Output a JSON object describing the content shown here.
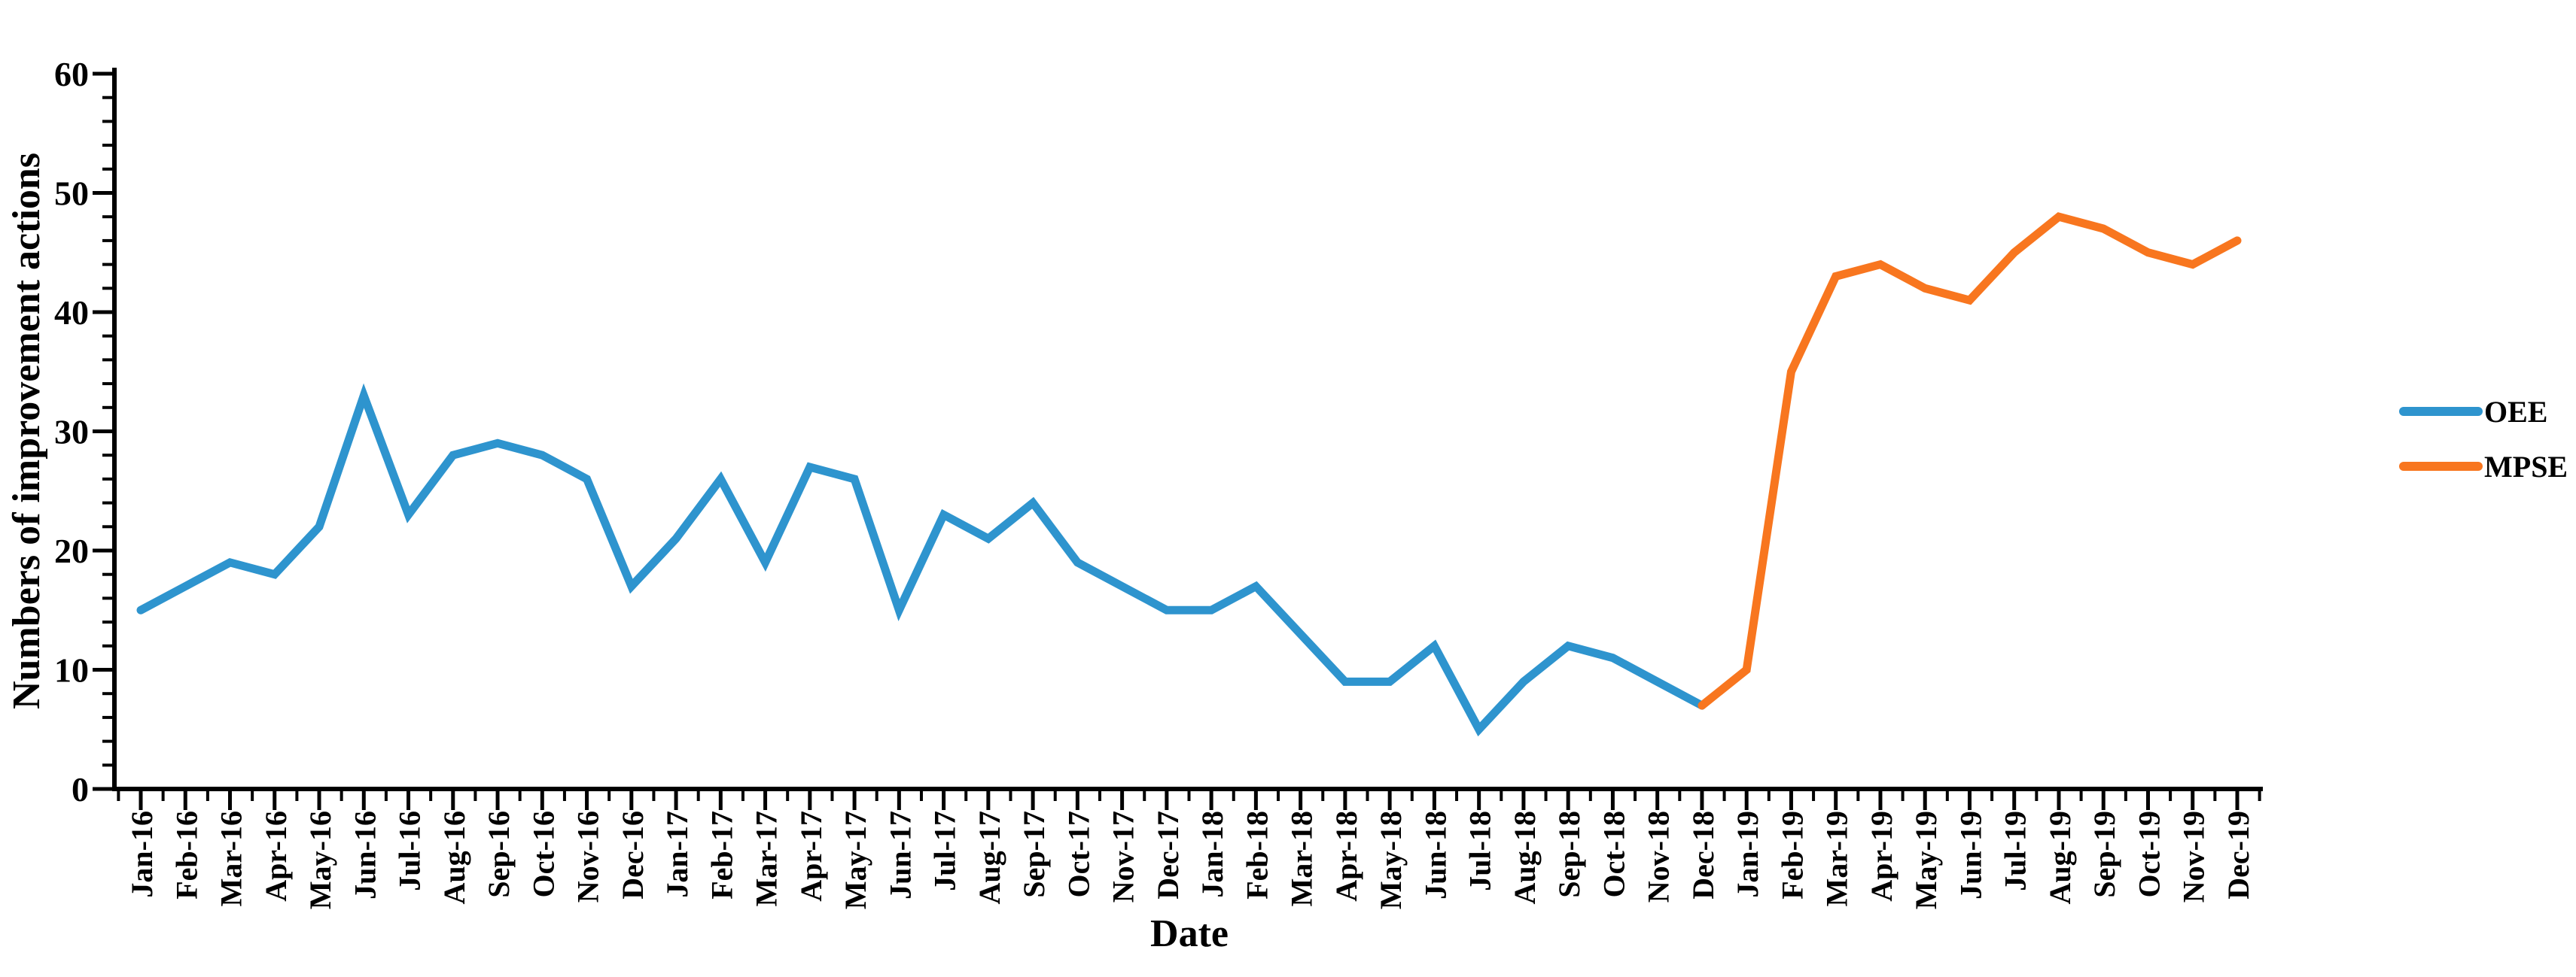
{
  "page": {
    "background_color": "#ffffff",
    "text_color": "#000000"
  },
  "chart_data": {
    "type": "line",
    "title": "",
    "xlabel": "Date",
    "ylabel": "Numbers of improvement actions",
    "x_categories": [
      "Jan-16",
      "Feb-16",
      "Mar-16",
      "Apr-16",
      "May-16",
      "Jun-16",
      "Jul-16",
      "Aug-16",
      "Sep-16",
      "Oct-16",
      "Nov-16",
      "Dec-16",
      "Jan-17",
      "Feb-17",
      "Mar-17",
      "Apr-17",
      "May-17",
      "Jun-17",
      "Jul-17",
      "Aug-17",
      "Sep-17",
      "Oct-17",
      "Nov-17",
      "Dec-17",
      "Jan-18",
      "Feb-18",
      "Mar-18",
      "Apr-18",
      "May-18",
      "Jun-18",
      "Jul-18",
      "Aug-18",
      "Sep-18",
      "Oct-18",
      "Nov-18",
      "Dec-18",
      "Jan-19",
      "Feb-19",
      "Mar-19",
      "Apr-19",
      "May-19",
      "Jun-19",
      "Jul-19",
      "Aug-19",
      "Sep-19",
      "Oct-19",
      "Nov-19",
      "Dec-19"
    ],
    "ylim": [
      0,
      60
    ],
    "ytick_step_major": 10,
    "ytick_step_minor": 2,
    "grid": false,
    "legend_position": "right",
    "series": [
      {
        "name": "OEE",
        "color": "#2E94CE",
        "start_index": 0,
        "values": [
          15,
          17,
          19,
          18,
          22,
          33,
          23,
          28,
          29,
          28,
          26,
          17,
          21,
          26,
          19,
          27,
          26,
          15,
          23,
          21,
          24,
          19,
          17,
          15,
          15,
          17,
          13,
          9,
          9,
          12,
          5,
          9,
          12,
          11,
          9,
          7
        ]
      },
      {
        "name": "MPSE",
        "color": "#F8761F",
        "start_index": 35,
        "values": [
          7,
          10,
          35,
          43,
          44,
          42,
          41,
          45,
          48,
          47,
          45,
          44,
          46
        ]
      }
    ]
  }
}
